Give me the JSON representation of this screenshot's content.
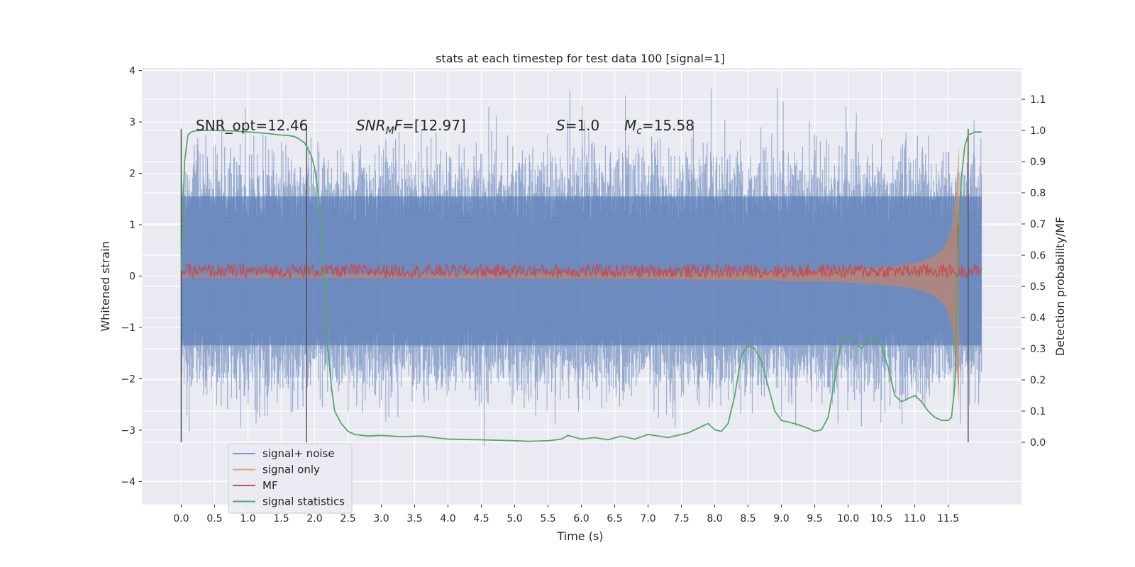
{
  "chart_data": {
    "type": "line",
    "title": "stats at each timestep for test data 100 [signal=1]",
    "xlabel": "Time (s)",
    "ylabel_left": "Whitened strain",
    "ylabel_right": "Detection probability/MF",
    "xlim": [
      -0.59,
      12.6
    ],
    "ylim_left": [
      -4.45,
      4.05
    ],
    "ylim_right": [
      -0.2,
      1.2
    ],
    "x_ticks": [
      0.0,
      0.5,
      1.0,
      1.5,
      2.0,
      2.5,
      3.0,
      3.5,
      4.0,
      4.5,
      5.0,
      5.5,
      6.0,
      6.5,
      7.0,
      7.5,
      8.0,
      8.5,
      9.0,
      9.5,
      10.0,
      10.5,
      11.0,
      11.5
    ],
    "x_tick_labels": [
      "0.0",
      "0.5",
      "1.0",
      "1.5",
      "2.0",
      "2.5",
      "3.0",
      "3.5",
      "4.0",
      "4.5",
      "5.0",
      "5.5",
      "6.0",
      "6.5",
      "7.0",
      "7.5",
      "8.0",
      "8.5",
      "9.0",
      "9.5",
      "10.0",
      "10.5",
      "11.0",
      "11.5"
    ],
    "y_left_ticks": [
      4,
      3,
      2,
      1,
      0,
      -1,
      -2,
      -3,
      -4
    ],
    "y_left_tick_labels": [
      "4",
      "3",
      "2",
      "1",
      "0",
      "−1",
      "−2",
      "−3",
      "−4"
    ],
    "y_right_ticks": [
      1.1,
      1.0,
      0.9,
      0.8,
      0.7,
      0.6,
      0.5,
      0.4,
      0.3,
      0.2,
      0.1,
      0.0
    ],
    "y_right_tick_labels": [
      "1.1",
      "1.0",
      "0.9",
      "0.8",
      "0.7",
      "0.6",
      "0.5",
      "0.4",
      "0.3",
      "0.2",
      "0.1",
      "0.0"
    ],
    "grid": true,
    "legend_position": "lower-left",
    "annotations": {
      "snr_opt": "SNR_opt=12.46",
      "snr_mf_var": "SNR",
      "snr_mf_sub": "M",
      "snr_mf_var2": "F",
      "snr_mf_val": "=[12.97]",
      "s_var": "S",
      "s_val": "=1.0",
      "mc_var": "M",
      "mc_sub": "c",
      "mc_val": "=15.58"
    },
    "vertical_lines_x": [
      0.0,
      1.88,
      11.8
    ],
    "noise_envelope": {
      "x_range": [
        0.0,
        12.0
      ],
      "typical_abs": 2.2,
      "max": 3.65,
      "min": -4.1
    },
    "signal_only": {
      "x_range": [
        0.0,
        11.67
      ],
      "amplitude_at_start": 0.03,
      "peak_amplitude": 2.55,
      "merger_time": 11.67
    },
    "mf": {
      "x_range": [
        0.0,
        12.0
      ],
      "baseline": 0.1,
      "spike_x": 11.65,
      "spike_value": 1.0
    },
    "series": [
      {
        "name": "signal+ noise",
        "color": "#4c72b0"
      },
      {
        "name": "signal only",
        "color": "#dd8452"
      },
      {
        "name": "MF",
        "color": "#c44e52"
      },
      {
        "name": "signal statistics",
        "color": "#55a868",
        "x": [
          0.0,
          0.05,
          0.1,
          0.15,
          0.2,
          0.3,
          0.5,
          0.8,
          1.0,
          1.3,
          1.5,
          1.6,
          1.7,
          1.75,
          1.85,
          1.95,
          2.0,
          2.05,
          2.1,
          2.15,
          2.2,
          2.25,
          2.3,
          2.4,
          2.5,
          2.6,
          2.8,
          3.0,
          3.3,
          3.6,
          4.0,
          4.5,
          5.0,
          5.2,
          5.5,
          5.7,
          5.8,
          6.0,
          6.2,
          6.4,
          6.6,
          6.8,
          7.0,
          7.3,
          7.6,
          7.8,
          7.9,
          8.0,
          8.1,
          8.2,
          8.3,
          8.4,
          8.5,
          8.6,
          8.7,
          8.8,
          8.9,
          9.0,
          9.2,
          9.4,
          9.5,
          9.6,
          9.7,
          9.8,
          9.9,
          10.0,
          10.1,
          10.2,
          10.3,
          10.4,
          10.5,
          10.6,
          10.7,
          10.8,
          10.9,
          11.0,
          11.1,
          11.2,
          11.3,
          11.4,
          11.5,
          11.55,
          11.6,
          11.65,
          11.7,
          11.75,
          11.8,
          11.85,
          11.9,
          11.95,
          12.0
        ],
        "y": [
          0.55,
          0.9,
          0.985,
          0.995,
          0.998,
          1.0,
          1.0,
          0.998,
          0.995,
          0.99,
          0.985,
          0.984,
          0.98,
          0.975,
          0.96,
          0.92,
          0.88,
          0.8,
          0.7,
          0.5,
          0.3,
          0.18,
          0.1,
          0.06,
          0.035,
          0.025,
          0.02,
          0.022,
          0.018,
          0.02,
          0.01,
          0.008,
          0.005,
          0.003,
          0.005,
          0.01,
          0.022,
          0.01,
          0.015,
          0.008,
          0.02,
          0.01,
          0.025,
          0.015,
          0.03,
          0.05,
          0.06,
          0.04,
          0.035,
          0.06,
          0.15,
          0.28,
          0.31,
          0.3,
          0.26,
          0.18,
          0.1,
          0.07,
          0.06,
          0.045,
          0.035,
          0.04,
          0.08,
          0.2,
          0.33,
          0.345,
          0.32,
          0.3,
          0.33,
          0.335,
          0.31,
          0.24,
          0.15,
          0.13,
          0.14,
          0.15,
          0.13,
          0.1,
          0.08,
          0.07,
          0.07,
          0.08,
          0.18,
          0.6,
          0.85,
          0.95,
          0.985,
          0.99,
          0.995,
          0.995,
          0.995
        ]
      }
    ]
  }
}
